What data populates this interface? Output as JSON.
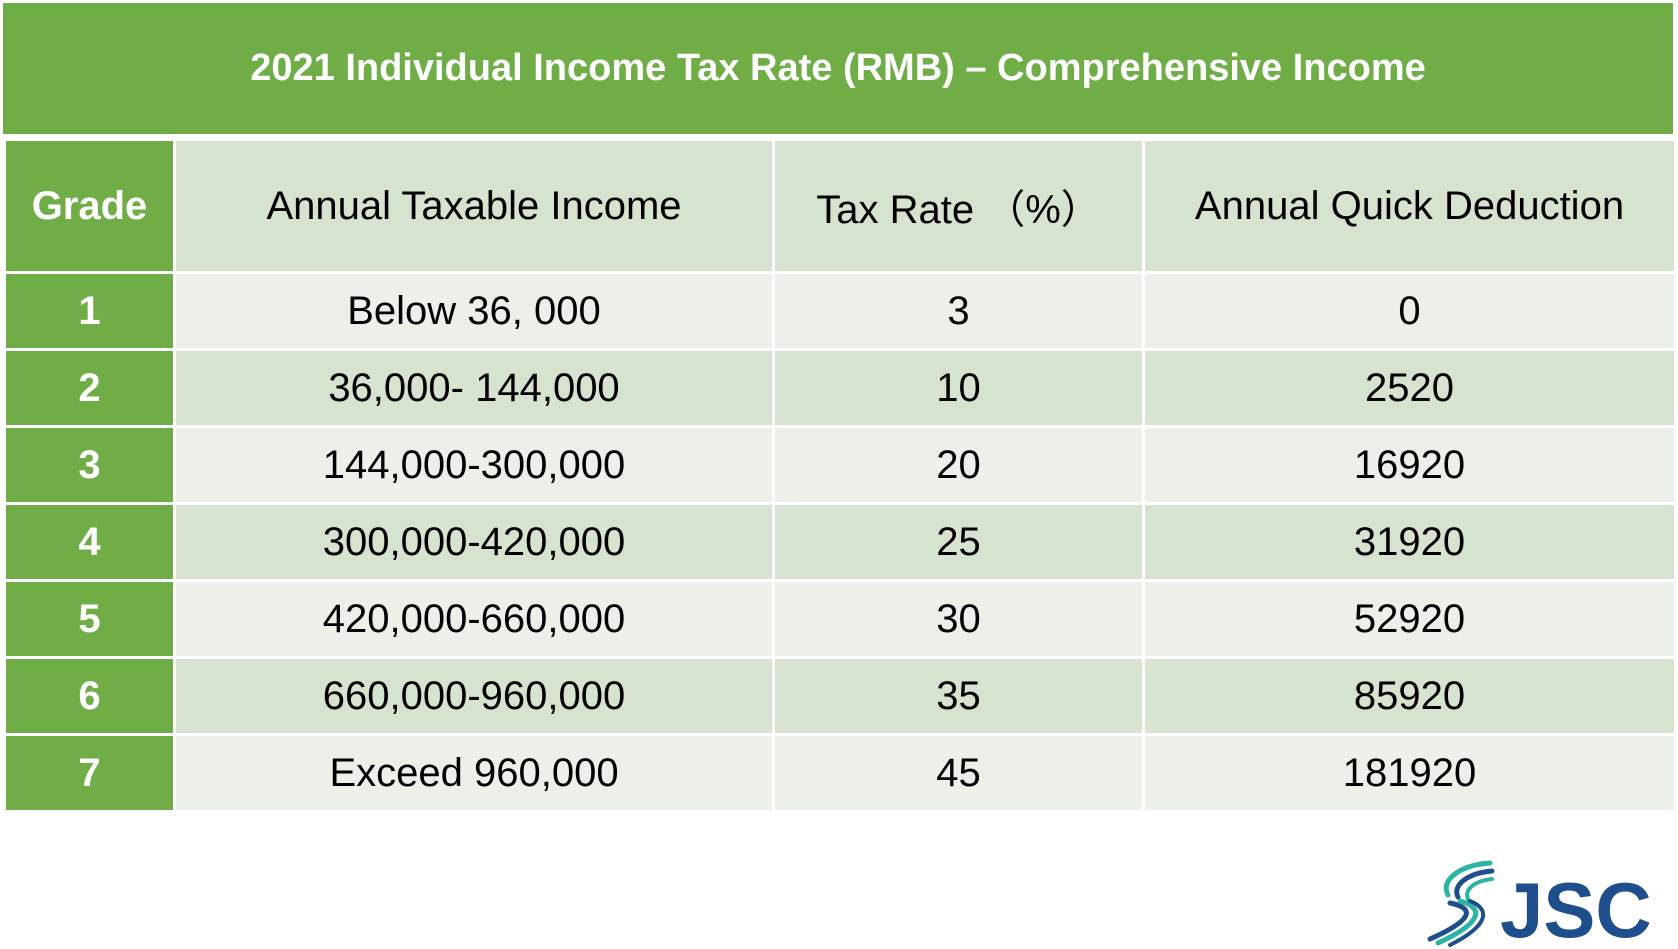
{
  "title": "2021 Individual Income Tax Rate (RMB) – Comprehensive Income",
  "columns": [
    "Grade",
    "Annual Taxable Income",
    "Tax Rate （%）",
    "Annual Quick Deduction"
  ],
  "rows": [
    [
      "1",
      "Below 36, 000",
      "3",
      "0"
    ],
    [
      "2",
      "36,000- 144,000",
      "10",
      "2520"
    ],
    [
      "3",
      "144,000-300,000",
      "20",
      "16920"
    ],
    [
      "4",
      "300,000-420,000",
      "25",
      "31920"
    ],
    [
      "5",
      "420,000-660,000",
      "30",
      "52920"
    ],
    [
      "6",
      "660,000-960,000",
      "35",
      "85920"
    ],
    [
      "7",
      "Exceed 960,000",
      "45",
      "181920"
    ]
  ],
  "logo": {
    "text": "JSC"
  },
  "colors": {
    "green": "#70ad47",
    "light": "#d6e3cf",
    "lighter": "#ebf1e9",
    "logo_blue": "#1f4e8c",
    "logo_teal": "#2bb3a3"
  }
}
